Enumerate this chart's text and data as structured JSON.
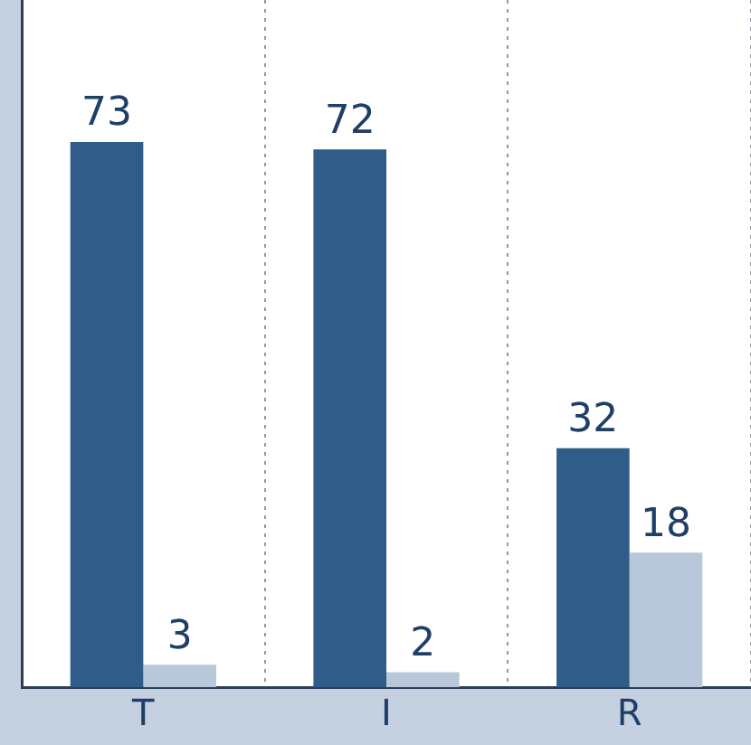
{
  "chart_data": {
    "type": "bar",
    "categories": [
      "T",
      "I",
      "R"
    ],
    "series": [
      {
        "color": "#2f5c88",
        "values": [
          73,
          72,
          32
        ]
      },
      {
        "color": "#b9c7da",
        "values": [
          3,
          2,
          18
        ]
      }
    ],
    "ylim": [
      0,
      92
    ],
    "data_labels": true,
    "grid": "x",
    "legend": false
  }
}
